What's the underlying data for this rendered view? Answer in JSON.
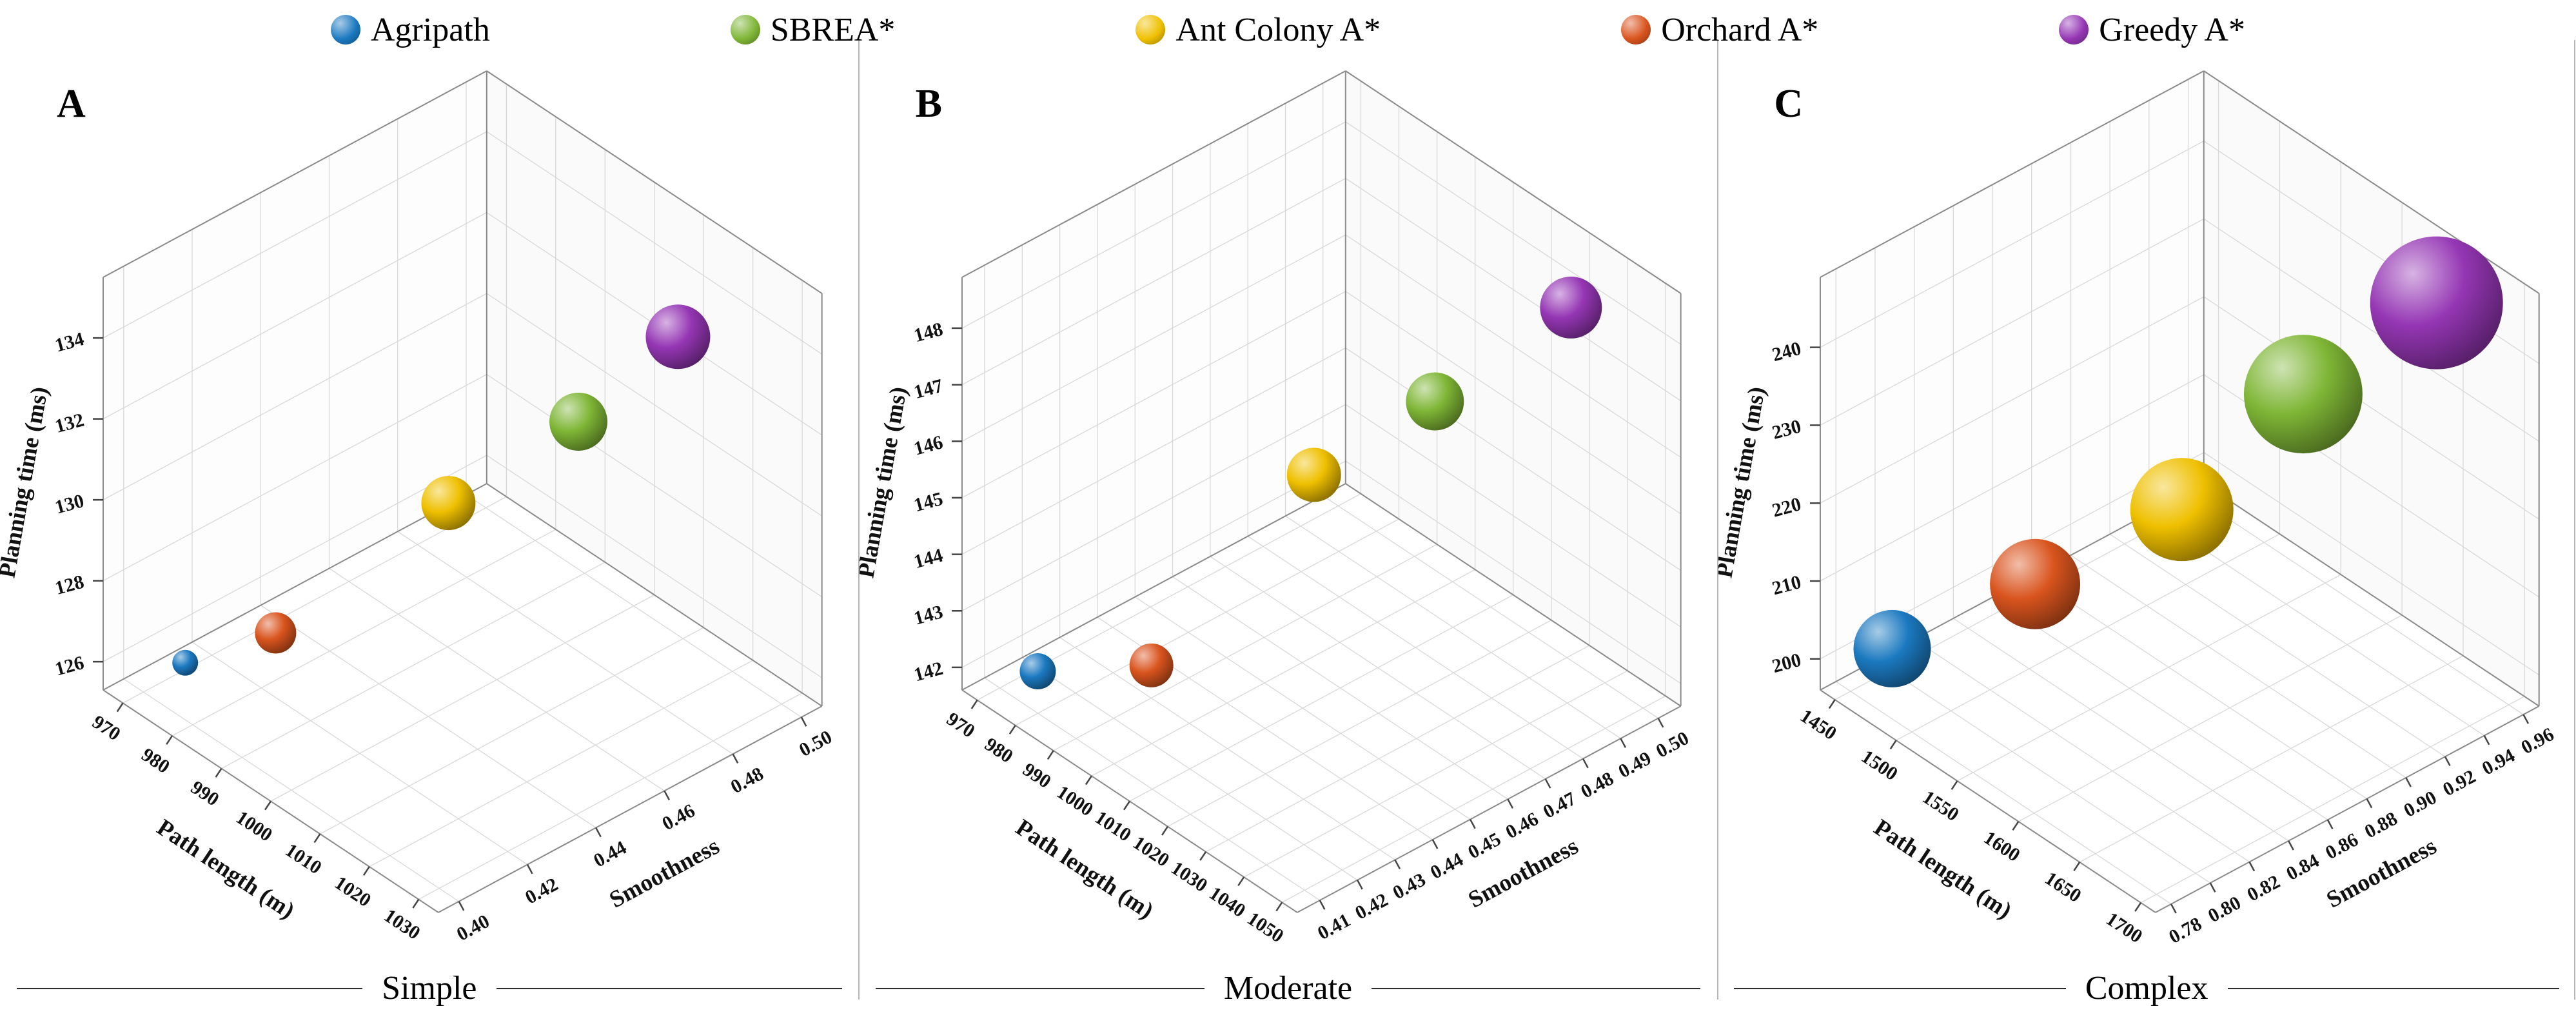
{
  "legend": {
    "items": [
      {
        "label": "Agripath",
        "color": "#1b79c0"
      },
      {
        "label": "SBREA*",
        "color": "#7fb636"
      },
      {
        "label": "Ant Colony A*",
        "color": "#efc000"
      },
      {
        "label": "Orchard A*",
        "color": "#d9541e"
      },
      {
        "label": "Greedy A*",
        "color": "#9536b4"
      }
    ]
  },
  "chart_data": [
    {
      "type": "scatter",
      "subtype": "3d-bubble",
      "panel_label": "A",
      "caption": "Simple",
      "xlabel": "Path length (m)",
      "ylabel": "Smoothness",
      "zlabel": "Planning time (ms)",
      "x_ticks": [
        "970",
        "980",
        "990",
        "1000",
        "1010",
        "1020",
        "1030"
      ],
      "y_ticks": [
        "0.40",
        "0.42",
        "0.44",
        "0.46",
        "0.48",
        "0.50"
      ],
      "z_ticks": [
        "126",
        "128",
        "130",
        "132",
        "134"
      ],
      "x_range": [
        966,
        1034
      ],
      "y_range": [
        0.394,
        0.506
      ],
      "z_range": [
        125.3,
        135.5
      ],
      "grid": true,
      "series": [
        {
          "name": "Agripath",
          "color": "#1b79c0",
          "path_length_m": 975,
          "smoothness": 0.405,
          "planning_time_ms": 126.2,
          "bubble_radius_px": 20
        },
        {
          "name": "SBREA*",
          "color": "#7fb636",
          "path_length_m": 1011,
          "smoothness": 0.468,
          "planning_time_ms": 132.2,
          "bubble_radius_px": 45
        },
        {
          "name": "Ant Colony A*",
          "color": "#efc000",
          "path_length_m": 1002,
          "smoothness": 0.443,
          "planning_time_ms": 130.6,
          "bubble_radius_px": 42
        },
        {
          "name": "Orchard A*",
          "color": "#d9541e",
          "path_length_m": 985,
          "smoothness": 0.417,
          "planning_time_ms": 127.2,
          "bubble_radius_px": 32
        },
        {
          "name": "Greedy A*",
          "color": "#9536b4",
          "path_length_m": 1018,
          "smoothness": 0.487,
          "planning_time_ms": 134.0,
          "bubble_radius_px": 50
        }
      ]
    },
    {
      "type": "scatter",
      "subtype": "3d-bubble",
      "panel_label": "B",
      "caption": "Moderate",
      "xlabel": "Path length (m)",
      "ylabel": "Smoothness",
      "zlabel": "Planning time (ms)",
      "x_ticks": [
        "970",
        "980",
        "990",
        "1000",
        "1010",
        "1020",
        "1030",
        "1040",
        "1050"
      ],
      "y_ticks": [
        "0.41",
        "0.42",
        "0.43",
        "0.44",
        "0.45",
        "0.46",
        "0.47",
        "0.48",
        "0.49",
        "0.50"
      ],
      "z_ticks": [
        "142",
        "143",
        "144",
        "145",
        "146",
        "147",
        "148"
      ],
      "x_range": [
        966,
        1054
      ],
      "y_range": [
        0.404,
        0.506
      ],
      "z_range": [
        141.6,
        148.9
      ],
      "grid": true,
      "series": [
        {
          "name": "Agripath",
          "color": "#1b79c0",
          "path_length_m": 977,
          "smoothness": 0.413,
          "planning_time_ms": 142.1,
          "bubble_radius_px": 28
        },
        {
          "name": "SBREA*",
          "color": "#7fb636",
          "path_length_m": 1024,
          "smoothness": 0.471,
          "planning_time_ms": 146.9,
          "bubble_radius_px": 45
        },
        {
          "name": "Ant Colony A*",
          "color": "#efc000",
          "path_length_m": 1011,
          "smoothness": 0.452,
          "planning_time_ms": 145.7,
          "bubble_radius_px": 42
        },
        {
          "name": "Orchard A*",
          "color": "#d9541e",
          "path_length_m": 994,
          "smoothness": 0.426,
          "planning_time_ms": 142.5,
          "bubble_radius_px": 34
        },
        {
          "name": "Greedy A*",
          "color": "#9536b4",
          "path_length_m": 1038,
          "smoothness": 0.493,
          "planning_time_ms": 148.4,
          "bubble_radius_px": 48
        }
      ]
    },
    {
      "type": "scatter",
      "subtype": "3d-bubble",
      "panel_label": "C",
      "caption": "Complex",
      "xlabel": "Path length (m)",
      "ylabel": "Smoothness",
      "zlabel": "Planning time (ms)",
      "x_ticks": [
        "1450",
        "1500",
        "1550",
        "1600",
        "1650",
        "1700"
      ],
      "y_ticks": [
        "0.78",
        "0.80",
        "0.82",
        "0.84",
        "0.86",
        "0.88",
        "0.90",
        "0.92",
        "0.94",
        "0.96"
      ],
      "z_ticks": [
        "200",
        "210",
        "220",
        "230",
        "240"
      ],
      "x_range": [
        1438,
        1712
      ],
      "y_range": [
        0.772,
        0.968
      ],
      "z_range": [
        196,
        249
      ],
      "grid": true,
      "series": [
        {
          "name": "Agripath",
          "color": "#1b79c0",
          "path_length_m": 1468,
          "smoothness": 0.79,
          "planning_time_ms": 202,
          "bubble_radius_px": 60
        },
        {
          "name": "SBREA*",
          "color": "#7fb636",
          "path_length_m": 1620,
          "smoothness": 0.905,
          "planning_time_ms": 235,
          "bubble_radius_px": 92
        },
        {
          "name": "Ant Colony A*",
          "color": "#efc000",
          "path_length_m": 1580,
          "smoothness": 0.868,
          "planning_time_ms": 221,
          "bubble_radius_px": 80
        },
        {
          "name": "Orchard A*",
          "color": "#d9541e",
          "path_length_m": 1524,
          "smoothness": 0.828,
          "planning_time_ms": 211,
          "bubble_radius_px": 70
        },
        {
          "name": "Greedy A*",
          "color": "#9536b4",
          "path_length_m": 1665,
          "smoothness": 0.945,
          "planning_time_ms": 246,
          "bubble_radius_px": 103
        }
      ]
    }
  ]
}
